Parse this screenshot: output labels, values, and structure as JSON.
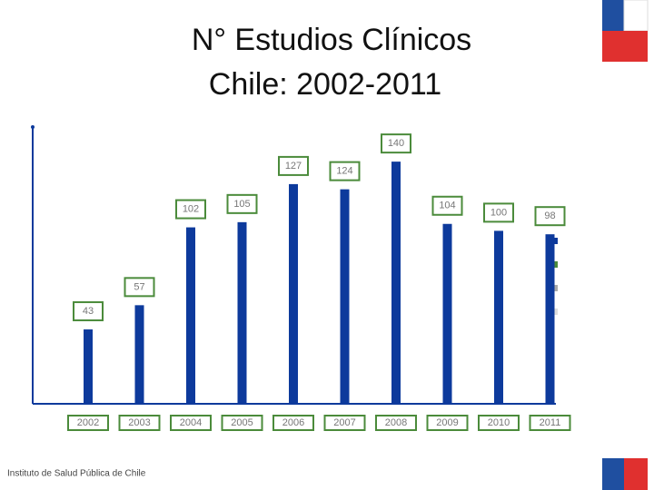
{
  "chart_data": {
    "type": "bar",
    "title": "N° Estudios Clínicos",
    "subtitle": "Chile: 2002-2011",
    "categories": [
      "2002",
      "2003",
      "2004",
      "2005",
      "2006",
      "2007",
      "2008",
      "2009",
      "2010",
      "2011"
    ],
    "values": [
      43,
      57,
      102,
      105,
      127,
      124,
      140,
      104,
      100,
      98
    ],
    "color": "#0d3a9c",
    "label_color": "#4b8b3b",
    "ylim": [
      0,
      160
    ]
  },
  "footer": "Instituto de Salud Pública de Chile"
}
